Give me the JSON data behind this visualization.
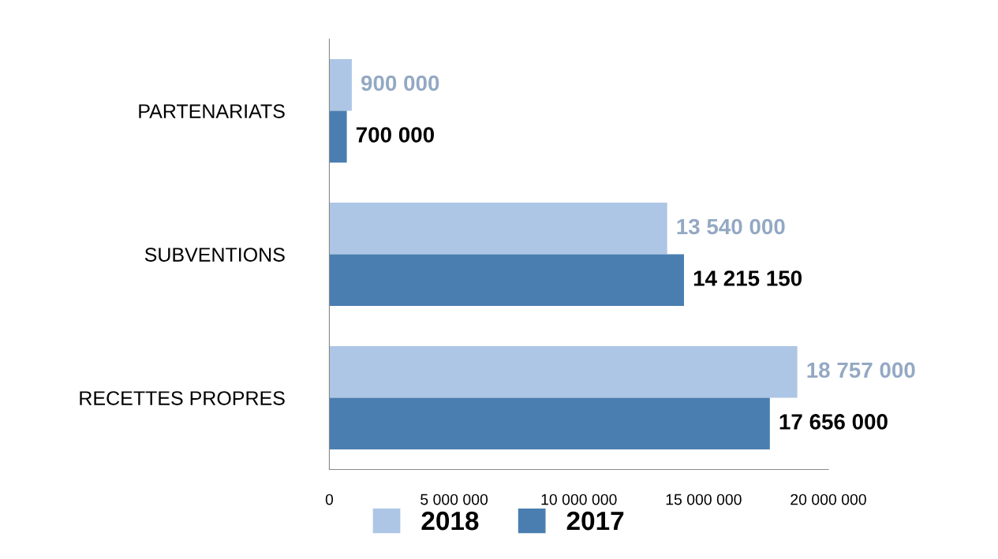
{
  "chart_data": {
    "type": "bar",
    "orientation": "horizontal",
    "categories": [
      "PARTENARIATS",
      "SUBVENTIONS",
      "RECETTES PROPRES"
    ],
    "series": [
      {
        "name": "2018",
        "color": "#adc6e5",
        "values": [
          900000,
          13540000,
          18757000
        ],
        "value_labels": [
          "900 000",
          "13 540 000",
          "18 757 000"
        ]
      },
      {
        "name": "2017",
        "color": "#4a7eb0",
        "values": [
          700000,
          14215150,
          17656000
        ],
        "value_labels": [
          "700 000",
          "14 215 150",
          "17 656 000"
        ]
      }
    ],
    "xlim": [
      0,
      20000000
    ],
    "xticks": [
      0,
      {
        "value": 5000000,
        "label": "5 000 000"
      },
      {
        "value": 10000000,
        "label": "10 000 000"
      },
      {
        "value": 15000000,
        "label": "15 000 000"
      },
      {
        "value": 20000000,
        "label": "20 000 000"
      }
    ],
    "grid": false,
    "legend": "bottom"
  }
}
